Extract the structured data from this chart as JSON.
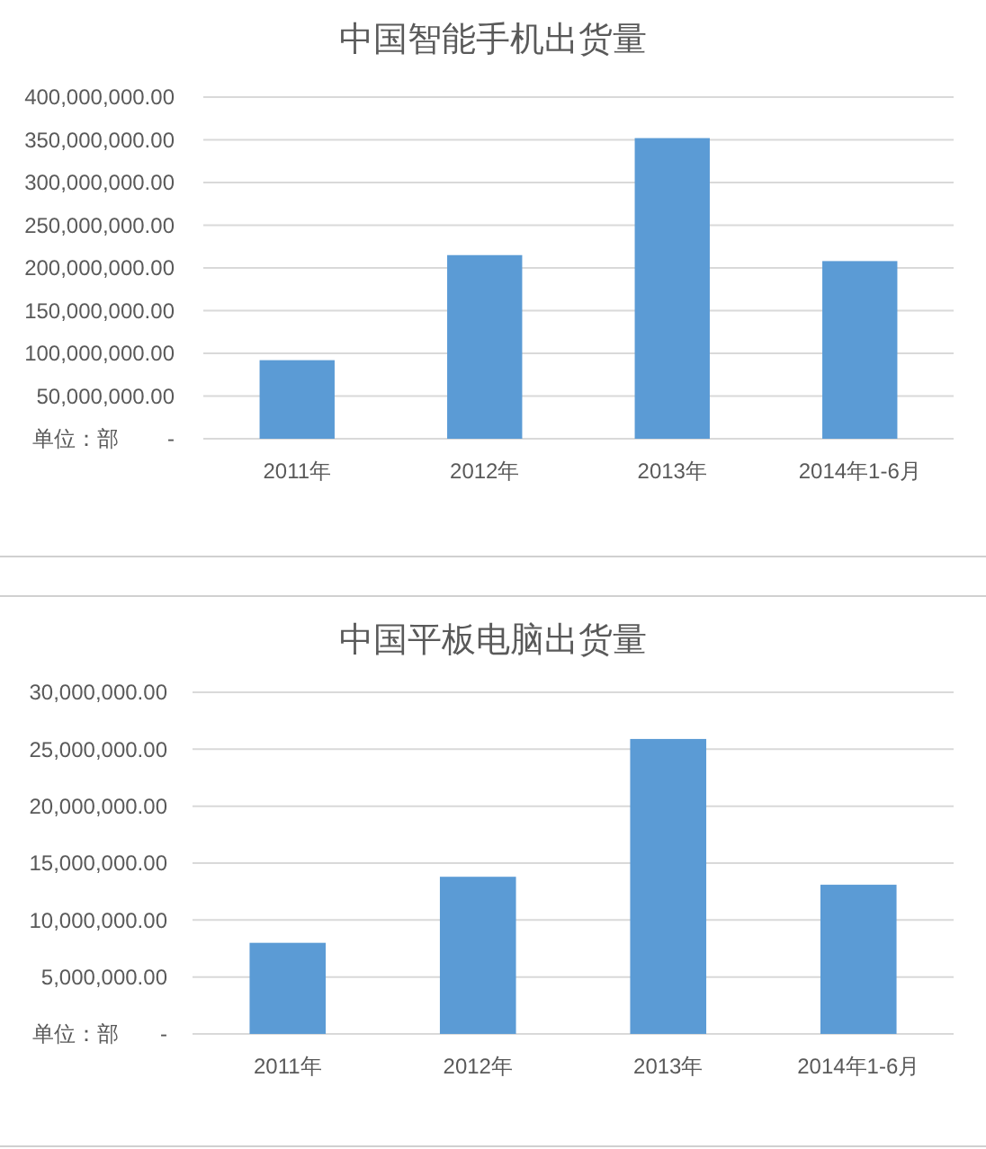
{
  "chart_data": [
    {
      "type": "bar",
      "title": "中国智能手机出货量",
      "categories": [
        "2011年",
        "2012年",
        "2013年",
        "2014年1-6月"
      ],
      "values": [
        92000000,
        215000000,
        352000000,
        208000000
      ],
      "color": "#5b9bd5",
      "ylim": [
        0,
        400000000
      ],
      "yticks": [
        {
          "value": 0,
          "label": "-"
        },
        {
          "value": 50000000,
          "label": "50,000,000.00"
        },
        {
          "value": 100000000,
          "label": "100,000,000.00"
        },
        {
          "value": 150000000,
          "label": "150,000,000.00"
        },
        {
          "value": 200000000,
          "label": "200,000,000.00"
        },
        {
          "value": 250000000,
          "label": "250,000,000.00"
        },
        {
          "value": 300000000,
          "label": "300,000,000.00"
        },
        {
          "value": 350000000,
          "label": "350,000,000.00"
        },
        {
          "value": 400000000,
          "label": "400,000,000.00"
        }
      ],
      "grid": "y",
      "annotations": [
        "单位：部"
      ]
    },
    {
      "type": "bar",
      "title": "中国平板电脑出货量",
      "categories": [
        "2011年",
        "2012年",
        "2013年",
        "2014年1-6月"
      ],
      "values": [
        8000000,
        13800000,
        25900000,
        13100000
      ],
      "color": "#5b9bd5",
      "ylim": [
        0,
        30000000
      ],
      "yticks": [
        {
          "value": 0,
          "label": "-"
        },
        {
          "value": 5000000,
          "label": "5,000,000.00"
        },
        {
          "value": 10000000,
          "label": "10,000,000.00"
        },
        {
          "value": 15000000,
          "label": "15,000,000.00"
        },
        {
          "value": 20000000,
          "label": "20,000,000.00"
        },
        {
          "value": 25000000,
          "label": "25,000,000.00"
        },
        {
          "value": 30000000,
          "label": "30,000,000.00"
        }
      ],
      "grid": "y",
      "annotations": [
        "单位：部"
      ]
    }
  ]
}
